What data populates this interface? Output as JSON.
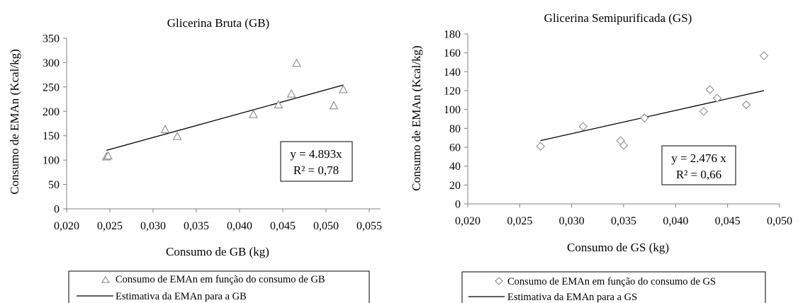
{
  "chart_data": [
    {
      "type": "scatter",
      "title": "Glicerina Bruta (GB)",
      "xlabel": "Consumo de GB (kg)",
      "ylabel": "Consumo de EMAn (Kcal/kg)",
      "xlim": [
        0.02,
        0.055
      ],
      "ylim": [
        0,
        350
      ],
      "x_ticks": [
        "0,020",
        "0,025",
        "0,030",
        "0,035",
        "0,040",
        "0,045",
        "0,050",
        "0,055"
      ],
      "y_ticks": [
        "0",
        "50",
        "100",
        "150",
        "200",
        "250",
        "300",
        "350"
      ],
      "grid": false,
      "marker": "triangle",
      "series": [
        {
          "name": "Consumo de EMAn em função do consumo de GB",
          "points": [
            {
              "x": 0.0246,
              "y": 106
            },
            {
              "x": 0.0248,
              "y": 108
            },
            {
              "x": 0.0314,
              "y": 162
            },
            {
              "x": 0.0328,
              "y": 148
            },
            {
              "x": 0.0416,
              "y": 193
            },
            {
              "x": 0.0445,
              "y": 213
            },
            {
              "x": 0.046,
              "y": 235
            },
            {
              "x": 0.0466,
              "y": 298
            },
            {
              "x": 0.0509,
              "y": 211
            },
            {
              "x": 0.052,
              "y": 244
            }
          ]
        }
      ],
      "trendline": {
        "name": "Estimativa da EMAn para a GB",
        "points": [
          {
            "x": 0.0246,
            "y": 120
          },
          {
            "x": 0.052,
            "y": 254
          }
        ]
      },
      "equation": [
        "y = 4.893x",
        "R² = 0,78"
      ],
      "legend_position": "bottom"
    },
    {
      "type": "scatter",
      "title": "Glicerina Semipurificada (GS)",
      "xlabel": "Consumo de GS (kg)",
      "ylabel": "Consumo de EMAn (Kcal/kg)",
      "xlim": [
        0.02,
        0.05
      ],
      "ylim": [
        0,
        180
      ],
      "x_ticks": [
        "0,020",
        "0,025",
        "0,030",
        "0,035",
        "0,040",
        "0,045",
        "0,050"
      ],
      "y_ticks": [
        "0",
        "20",
        "40",
        "60",
        "80",
        "100",
        "120",
        "140",
        "160",
        "180"
      ],
      "grid": false,
      "marker": "diamond",
      "series": [
        {
          "name": "Consumo de EMAn em função do consumo de GS",
          "points": [
            {
              "x": 0.027,
              "y": 61
            },
            {
              "x": 0.0311,
              "y": 82
            },
            {
              "x": 0.0347,
              "y": 67
            },
            {
              "x": 0.035,
              "y": 62
            },
            {
              "x": 0.037,
              "y": 91
            },
            {
              "x": 0.0427,
              "y": 98
            },
            {
              "x": 0.0433,
              "y": 121
            },
            {
              "x": 0.044,
              "y": 112
            },
            {
              "x": 0.0468,
              "y": 105
            },
            {
              "x": 0.0485,
              "y": 157
            }
          ]
        }
      ],
      "trendline": {
        "name": "Estimativa da EMAn para a GS",
        "points": [
          {
            "x": 0.027,
            "y": 67
          },
          {
            "x": 0.0485,
            "y": 120
          }
        ]
      },
      "equation": [
        "y = 2.476 x",
        "R² = 0,66"
      ],
      "legend_position": "bottom"
    }
  ]
}
